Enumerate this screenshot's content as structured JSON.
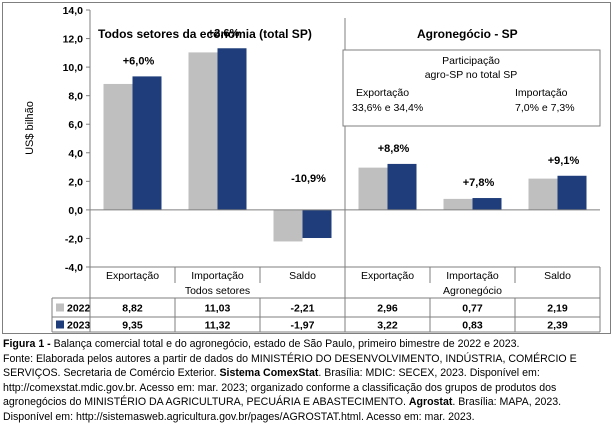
{
  "chart_data": {
    "type": "bar",
    "ylabel": "US$ bilhão",
    "ylim": [
      -4.0,
      14.0
    ],
    "ytick_step": 2.0,
    "yticks": [
      "-4,0",
      "-2,0",
      "0,0",
      "2,0",
      "4,0",
      "6,0",
      "8,0",
      "10,0",
      "12,0",
      "14,0"
    ],
    "categories": [
      "Exportação",
      "Importação",
      "Saldo",
      "Exportação",
      "Importação",
      "Saldo"
    ],
    "groups": [
      {
        "label": "Todos setores",
        "panel_title": "Todos setores da economia (total SP)"
      },
      {
        "label": "Agronegócio",
        "panel_title": "Agronegócio - SP"
      }
    ],
    "series": [
      {
        "name": "2022",
        "color": "#bfbfbf",
        "values": [
          8.82,
          11.03,
          -2.21,
          2.96,
          0.77,
          2.19
        ],
        "labels": [
          "8,82",
          "11,03",
          "-2,21",
          "2,96",
          "0,77",
          "2,19"
        ]
      },
      {
        "name": "2023",
        "color": "#1f3d7a",
        "values": [
          9.35,
          11.32,
          -1.97,
          3.22,
          0.83,
          2.39
        ],
        "labels": [
          "9,35",
          "11,32",
          "-1,97",
          "3,22",
          "0,83",
          "2,39"
        ]
      }
    ],
    "annotations": [
      "+6,0%",
      "+2,6%",
      "-10,9%",
      "+8,8%",
      "+7,8%",
      "+9,1%"
    ],
    "grid": false,
    "legend": "table-rows"
  },
  "infobox": {
    "title_line1": "Participação",
    "title_line2": "agro-SP no total SP",
    "export_label": "Exportação",
    "export_value": "33,6% e 34,4%",
    "import_label": "Importação",
    "import_value": "7,0% e 7,3%"
  },
  "caption": {
    "fig_label": "Figura 1 -",
    "fig_text": " Balança comercial total e do agronegócio, estado de São Paulo, primeiro bimestre de 2022 e 2023.",
    "source_a": "Fonte: Elaborada pelos autores a partir de dados do MINISTÉRIO DO DESENVOLVIMENTO, INDÚSTRIA, COMÉRCIO E SERVIÇOS. Secretaria de Comércio Exterior. ",
    "source_b": "Sistema ComexStat",
    "source_c": ". Brasília: MDIC: SECEX, 2023. Disponível em: http://comexstat.mdic.gov.br. Acesso em: mar. 2023; organizado conforme a classificação dos grupos de produtos dos agronegócios do MINISTÉRIO DA AGRICULTURA, PECUÁRIA E ABASTECIMENTO. ",
    "source_d": "Agrostat",
    "source_e": ". Brasília: MAPA, 2023. Disponível em: http://sistemasweb.agricultura.gov.br/pages/AGROSTAT.html. Acesso em: mar. 2023."
  }
}
